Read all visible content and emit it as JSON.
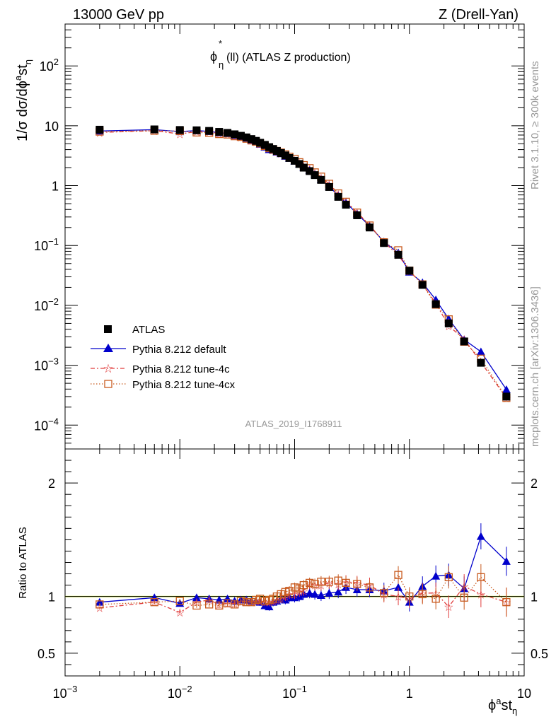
{
  "header": {
    "left": "13000 GeV pp",
    "right": "Z (Drell-Yan)"
  },
  "title": {
    "main": "ϕ",
    "sup": "*",
    "sub": "η",
    "rest": "(ll) (ATLAS Z production)"
  },
  "side_text": {
    "rivet": "Rivet 3.1.10, ≥ 300k events",
    "mcplots": "mcplots.cern.ch [arXiv:1306.3436]"
  },
  "watermark": "ATLAS_2019_I1768911",
  "ratio_ylabel": "Ratio to ATLAS",
  "colors": {
    "atlas": "#000000",
    "default": "#0000cc",
    "tune4c": "#e03c3c",
    "tune4cx": "#c85a1e",
    "band": "#ccee00"
  },
  "chart_data": {
    "type": "line",
    "xscale": "log",
    "xlim": [
      0.001,
      10
    ],
    "ylim": [
      4e-05,
      500
    ],
    "ratio_ylim": [
      0.3,
      2.3
    ],
    "ylabel": "1/σ dσ/dϕ^a st_η",
    "xlabel": "ϕ^a st_η",
    "x_ticks": [
      {
        "value": 0.001,
        "base": "10",
        "exp": "−3"
      },
      {
        "value": 0.01,
        "base": "10",
        "exp": "−2"
      },
      {
        "value": 0.1,
        "base": "10",
        "exp": "−1"
      },
      {
        "value": 1,
        "base": "1",
        "exp": ""
      },
      {
        "value": 10,
        "base": "10",
        "exp": ""
      }
    ],
    "y_ticks": [
      {
        "value": 0.0001,
        "base": "10",
        "exp": "−4"
      },
      {
        "value": 0.001,
        "base": "10",
        "exp": "−3"
      },
      {
        "value": 0.01,
        "base": "10",
        "exp": "−2"
      },
      {
        "value": 0.1,
        "base": "10",
        "exp": "−1"
      },
      {
        "value": 1,
        "base": "1",
        "exp": ""
      },
      {
        "value": 10,
        "base": "10",
        "exp": ""
      },
      {
        "value": 100,
        "base": "10",
        "exp": "2"
      }
    ],
    "ratio_ticks": [
      {
        "value": 0.5,
        "label": "0.5"
      },
      {
        "value": 1,
        "label": "1"
      },
      {
        "value": 2,
        "label": "2"
      }
    ],
    "x": [
      0.002,
      0.006,
      0.01,
      0.014,
      0.018,
      0.022,
      0.026,
      0.03,
      0.034,
      0.038,
      0.042,
      0.046,
      0.05,
      0.055,
      0.06,
      0.065,
      0.07,
      0.076,
      0.083,
      0.09,
      0.1,
      0.11,
      0.12,
      0.135,
      0.15,
      0.17,
      0.2,
      0.24,
      0.28,
      0.35,
      0.45,
      0.6,
      0.8,
      1.0,
      1.3,
      1.7,
      2.2,
      3.0,
      4.2,
      7.0
    ],
    "series": [
      {
        "name": "ATLAS",
        "style": "square",
        "values": [
          8.6,
          8.7,
          8.5,
          8.4,
          8.2,
          7.9,
          7.6,
          7.2,
          6.8,
          6.4,
          6.0,
          5.6,
          5.2,
          4.8,
          4.4,
          4.1,
          3.8,
          3.5,
          3.2,
          2.9,
          2.6,
          2.3,
          2.0,
          1.75,
          1.5,
          1.25,
          0.95,
          0.65,
          0.48,
          0.32,
          0.2,
          0.11,
          0.07,
          0.038,
          0.022,
          0.0105,
          0.005,
          0.0025,
          0.0011,
          0.0003
        ]
      },
      {
        "name": "Pythia 8.212 default",
        "style": "triangle-solid",
        "ratio": [
          0.95,
          0.99,
          0.94,
          0.99,
          0.98,
          0.97,
          0.98,
          0.96,
          0.97,
          0.97,
          0.96,
          0.96,
          0.95,
          0.92,
          0.91,
          0.95,
          0.96,
          0.98,
          0.97,
          0.99,
          0.99,
          1.0,
          1.02,
          1.03,
          1.02,
          1.01,
          1.03,
          1.04,
          1.08,
          1.06,
          1.06,
          1.05,
          1.08,
          0.95,
          1.09,
          1.18,
          1.19,
          1.07,
          1.53,
          1.31
        ]
      },
      {
        "name": "Pythia 8.212 tune-4c",
        "style": "star-dashdot",
        "ratio": [
          0.9,
          0.95,
          0.86,
          0.95,
          0.97,
          0.93,
          0.94,
          0.94,
          0.95,
          0.96,
          0.95,
          0.96,
          0.96,
          0.95,
          0.95,
          0.96,
          0.97,
          0.98,
          1.0,
          1.02,
          1.02,
          1.04,
          1.05,
          1.11,
          1.1,
          1.1,
          1.12,
          1.11,
          1.13,
          1.12,
          1.1,
          1.02,
          1.0,
          0.98,
          1.03,
          1.03,
          0.91,
          1.09,
          1.02,
          0.95
        ]
      },
      {
        "name": "Pythia 8.212 tune-4cx",
        "style": "square-open-dotted",
        "ratio": [
          0.93,
          0.95,
          0.96,
          0.92,
          0.93,
          0.92,
          0.94,
          0.93,
          0.96,
          0.95,
          0.95,
          0.97,
          0.98,
          0.96,
          0.97,
          0.98,
          1.0,
          1.02,
          1.04,
          1.05,
          1.08,
          1.07,
          1.1,
          1.12,
          1.11,
          1.13,
          1.13,
          1.14,
          1.12,
          1.11,
          1.08,
          1.03,
          1.19,
          1.0,
          1.02,
          0.98,
          1.17,
          0.99,
          1.17,
          0.95
        ]
      }
    ]
  }
}
